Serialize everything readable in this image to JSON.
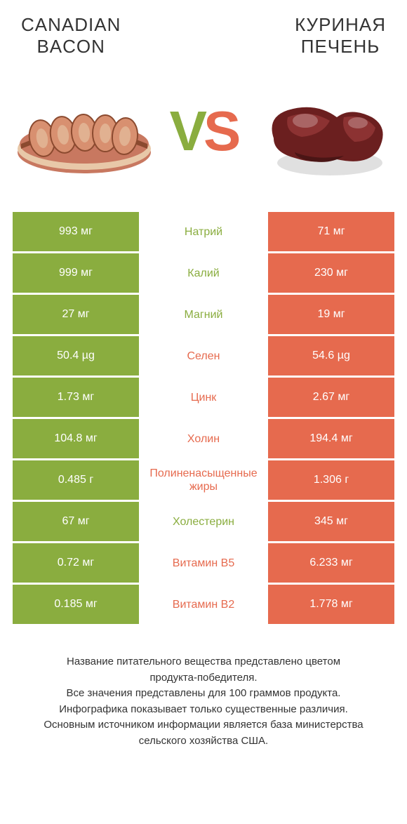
{
  "colors": {
    "green": "#8aad3f",
    "orange": "#e66a4e",
    "text": "#333333",
    "white": "#ffffff"
  },
  "header": {
    "left_title": "CANADIAN\nBACON",
    "right_title": "КУРИНАЯ\nПЕЧЕНЬ",
    "vs_v": "V",
    "vs_s": "S"
  },
  "rows": [
    {
      "left": "993 мг",
      "mid": "Натрий",
      "right": "71 мг",
      "winner": "left"
    },
    {
      "left": "999 мг",
      "mid": "Калий",
      "right": "230 мг",
      "winner": "left"
    },
    {
      "left": "27 мг",
      "mid": "Магний",
      "right": "19 мг",
      "winner": "left"
    },
    {
      "left": "50.4 µg",
      "mid": "Селен",
      "right": "54.6 µg",
      "winner": "right"
    },
    {
      "left": "1.73 мг",
      "mid": "Цинк",
      "right": "2.67 мг",
      "winner": "right"
    },
    {
      "left": "104.8 мг",
      "mid": "Холин",
      "right": "194.4 мг",
      "winner": "right"
    },
    {
      "left": "0.485 г",
      "mid": "Полиненасыщенные\nжиры",
      "right": "1.306 г",
      "winner": "right"
    },
    {
      "left": "67 мг",
      "mid": "Холестерин",
      "right": "345 мг",
      "winner": "left"
    },
    {
      "left": "0.72 мг",
      "mid": "Витамин B5",
      "right": "6.233 мг",
      "winner": "right"
    },
    {
      "left": "0.185 мг",
      "mid": "Витамин B2",
      "right": "1.778 мг",
      "winner": "right"
    }
  ],
  "footer": {
    "text": "Название питательного вещества представлено цветом\nпродукта-победителя.\nВсе значения представлены для 100 граммов продукта.\nИнфографика показывает только существенные различия.\nОсновным источником информации является база министерства\nсельского хозяйства США."
  },
  "images": {
    "bacon_colors": {
      "meat": "#c87860",
      "fat": "#e8c8a8",
      "rind": "#8b4a2f"
    },
    "liver_colors": {
      "main": "#6b1f1f",
      "highlight": "#9a3a3a",
      "shadow": "#4a1515"
    }
  }
}
